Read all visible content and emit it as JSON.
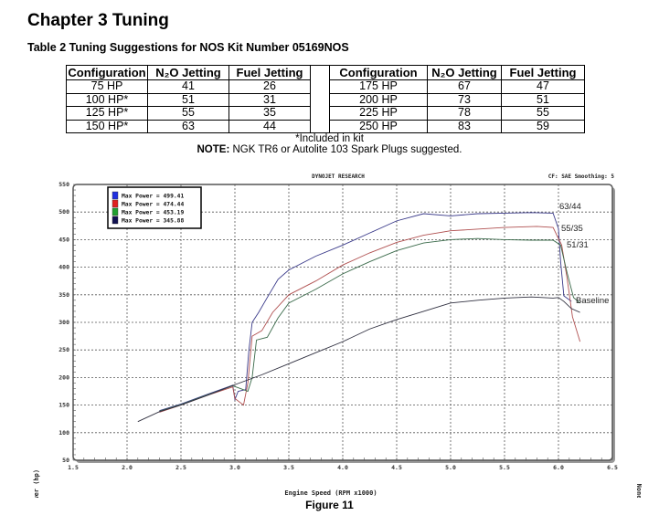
{
  "header": {
    "chapter": "Chapter 3  Tuning",
    "table_title": "Table 2  Tuning Suggestions for NOS Kit Number 05169NOS"
  },
  "table": {
    "columns": [
      "Configuration",
      "N₂O Jetting",
      "Fuel Jetting"
    ],
    "left_rows": [
      [
        "75 HP",
        "41",
        "26"
      ],
      [
        "100 HP*",
        "51",
        "31"
      ],
      [
        "125 HP*",
        "55",
        "35"
      ],
      [
        "150 HP*",
        "63",
        "44"
      ]
    ],
    "right_rows": [
      [
        "175 HP",
        "67",
        "47"
      ],
      [
        "200 HP",
        "73",
        "51"
      ],
      [
        "225 HP",
        "78",
        "55"
      ],
      [
        "250 HP",
        "83",
        "59"
      ]
    ],
    "footnote": "*Included in kit",
    "note_label": "NOTE:",
    "note_text": "  NGK TR6 or Autolite 103 Spark Plugs suggested."
  },
  "figure_caption": "Figure 11",
  "chart_data": {
    "type": "line",
    "title": "DYNOJET RESEARCH",
    "subtitle_right": "CF: SAE  Smoothing: 5",
    "right_label": "None",
    "xlabel": "Engine Speed (RPM x1000)",
    "ylabel": "Power (hp)",
    "xlim": [
      1.5,
      6.5
    ],
    "ylim": [
      50,
      550
    ],
    "xticks": [
      "1.5",
      "2.0",
      "2.5",
      "3.0",
      "3.5",
      "4.0",
      "4.5",
      "5.0",
      "5.5",
      "6.0",
      "6.5"
    ],
    "yticks": [
      "50",
      "100",
      "150",
      "200",
      "250",
      "300",
      "350",
      "400",
      "450",
      "500",
      "550"
    ],
    "grid": true,
    "legend_placement": "top-left",
    "series": [
      {
        "legend": "Max Power = 499.41",
        "label": "63/44",
        "color": "#3a3a8a",
        "swatch": "#2030e0",
        "points": [
          [
            2.3,
            140
          ],
          [
            2.5,
            152
          ],
          [
            2.75,
            170
          ],
          [
            2.98,
            186
          ],
          [
            3.0,
            160
          ],
          [
            3.03,
            175
          ],
          [
            3.1,
            178
          ],
          [
            3.13,
            250
          ],
          [
            3.16,
            300
          ],
          [
            3.22,
            318
          ],
          [
            3.3,
            345
          ],
          [
            3.4,
            378
          ],
          [
            3.5,
            395
          ],
          [
            3.75,
            420
          ],
          [
            4.0,
            440
          ],
          [
            4.25,
            462
          ],
          [
            4.5,
            484
          ],
          [
            4.75,
            497
          ],
          [
            5.0,
            493
          ],
          [
            5.25,
            497
          ],
          [
            5.5,
            498
          ],
          [
            5.75,
            499
          ],
          [
            5.95,
            498
          ],
          [
            6.0,
            470
          ],
          [
            6.02,
            410
          ],
          [
            6.05,
            348
          ],
          [
            6.12,
            338
          ]
        ]
      },
      {
        "legend": "Max Power = 474.44",
        "label": "55/35",
        "color": "#b05050",
        "swatch": "#e02020",
        "points": [
          [
            2.3,
            137
          ],
          [
            2.5,
            150
          ],
          [
            2.75,
            168
          ],
          [
            2.98,
            183
          ],
          [
            3.0,
            162
          ],
          [
            3.08,
            150
          ],
          [
            3.12,
            190
          ],
          [
            3.16,
            275
          ],
          [
            3.25,
            285
          ],
          [
            3.35,
            318
          ],
          [
            3.5,
            350
          ],
          [
            3.75,
            375
          ],
          [
            4.0,
            404
          ],
          [
            4.25,
            426
          ],
          [
            4.5,
            445
          ],
          [
            4.75,
            458
          ],
          [
            5.0,
            466
          ],
          [
            5.5,
            472
          ],
          [
            5.8,
            474
          ],
          [
            5.95,
            472
          ],
          [
            6.03,
            440
          ],
          [
            6.08,
            380
          ],
          [
            6.13,
            310
          ],
          [
            6.2,
            265
          ]
        ]
      },
      {
        "legend": "Max Power = 453.19",
        "label": "51/31",
        "color": "#3a6a4a",
        "swatch": "#20a030",
        "points": [
          [
            2.3,
            139
          ],
          [
            2.5,
            151
          ],
          [
            2.75,
            169
          ],
          [
            2.98,
            185
          ],
          [
            3.05,
            180
          ],
          [
            3.12,
            175
          ],
          [
            3.16,
            200
          ],
          [
            3.2,
            268
          ],
          [
            3.3,
            273
          ],
          [
            3.4,
            308
          ],
          [
            3.5,
            335
          ],
          [
            3.75,
            360
          ],
          [
            4.0,
            388
          ],
          [
            4.25,
            410
          ],
          [
            4.5,
            430
          ],
          [
            4.75,
            444
          ],
          [
            5.0,
            450
          ],
          [
            5.25,
            452
          ],
          [
            5.5,
            450
          ],
          [
            5.75,
            449
          ],
          [
            5.95,
            449
          ],
          [
            6.02,
            440
          ],
          [
            6.08,
            390
          ],
          [
            6.14,
            345
          ],
          [
            6.2,
            335
          ]
        ]
      },
      {
        "legend": "Max Power = 345.88",
        "label": "Baseline",
        "color": "#303040",
        "swatch": "#101050",
        "points": [
          [
            2.1,
            120
          ],
          [
            2.3,
            138
          ],
          [
            2.5,
            150
          ],
          [
            2.75,
            168
          ],
          [
            3.0,
            187
          ],
          [
            3.25,
            205
          ],
          [
            3.5,
            225
          ],
          [
            3.75,
            245
          ],
          [
            4.0,
            265
          ],
          [
            4.25,
            288
          ],
          [
            4.5,
            305
          ],
          [
            4.75,
            320
          ],
          [
            5.0,
            335
          ],
          [
            5.25,
            340
          ],
          [
            5.5,
            344
          ],
          [
            5.75,
            346
          ],
          [
            5.95,
            344
          ],
          [
            6.0,
            345
          ],
          [
            6.05,
            338
          ],
          [
            6.12,
            325
          ],
          [
            6.2,
            318
          ]
        ]
      }
    ]
  }
}
